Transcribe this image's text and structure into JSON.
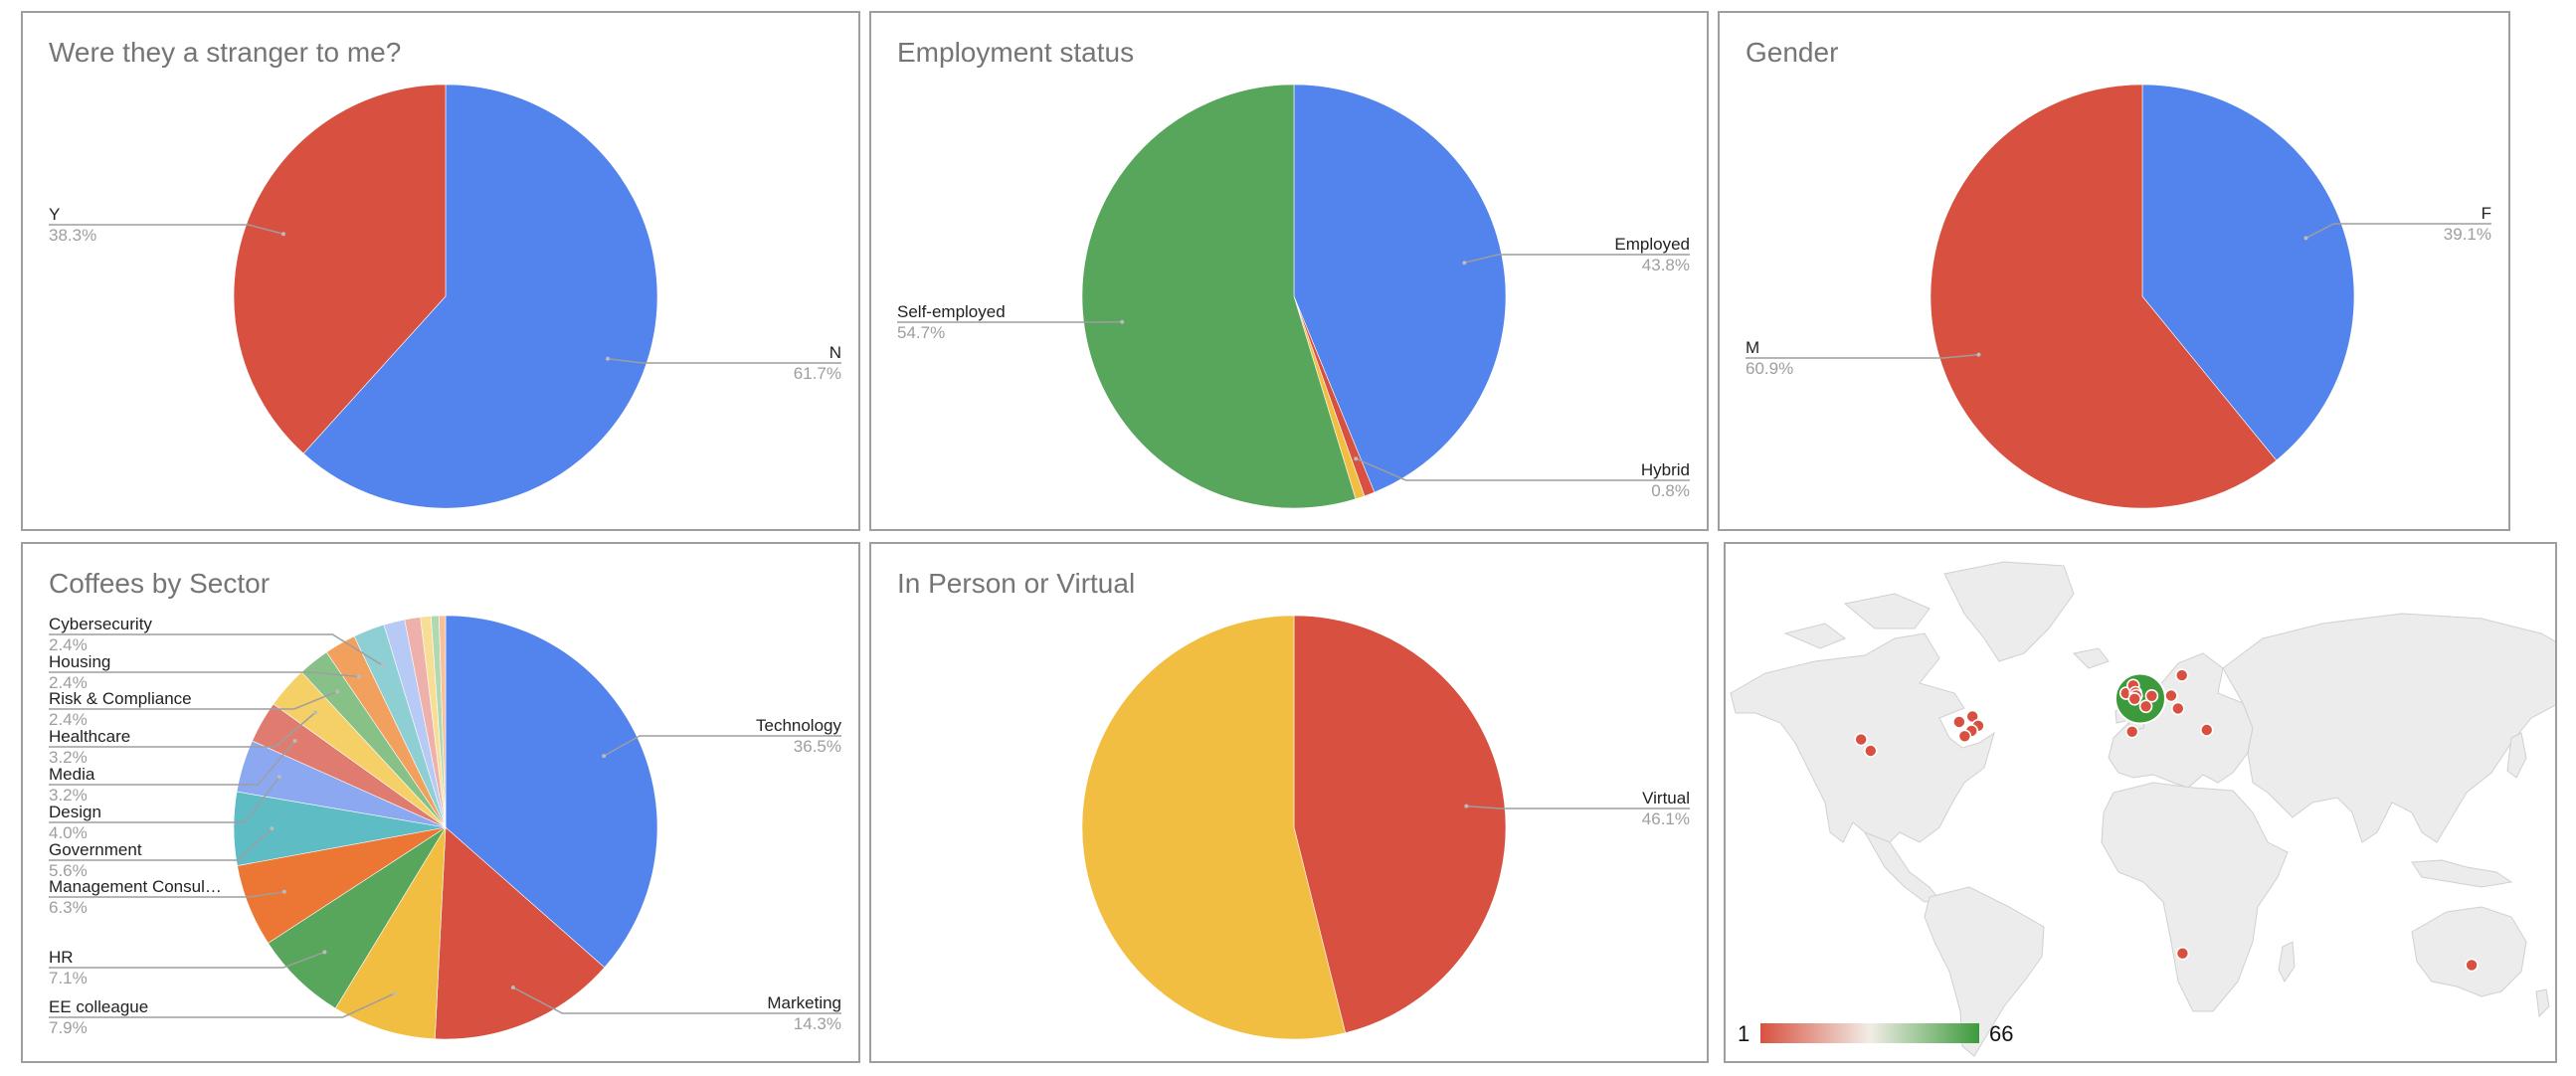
{
  "chart_data": [
    {
      "type": "pie",
      "title": "Were they a stranger to me?",
      "slices": [
        {
          "label": "N",
          "value": 61.7,
          "pct": "61.7%",
          "color": "#5383EC"
        },
        {
          "label": "Y",
          "value": 38.3,
          "pct": "38.3%",
          "color": "#D85140"
        }
      ]
    },
    {
      "type": "pie",
      "title": "Employment status",
      "slices": [
        {
          "label": "Employed",
          "value": 43.8,
          "pct": "43.8%",
          "color": "#5383EC"
        },
        {
          "label": "Hybrid",
          "value": 0.8,
          "pct": "0.8%",
          "color": "#D85140"
        },
        {
          "label": "",
          "value": 0.7,
          "pct": "",
          "color": "#F1BE42"
        },
        {
          "label": "Self-employed",
          "value": 54.7,
          "pct": "54.7%",
          "color": "#58A55C"
        }
      ]
    },
    {
      "type": "pie",
      "title": "Gender",
      "slices": [
        {
          "label": "F",
          "value": 39.1,
          "pct": "39.1%",
          "color": "#5383EC"
        },
        {
          "label": "M",
          "value": 60.9,
          "pct": "60.9%",
          "color": "#D85140"
        }
      ]
    },
    {
      "type": "pie",
      "title": "Coffees by Sector",
      "slices": [
        {
          "label": "Technology",
          "value": 36.5,
          "pct": "36.5%",
          "color": "#5383EC"
        },
        {
          "label": "Marketing",
          "value": 14.3,
          "pct": "14.3%",
          "color": "#D85140"
        },
        {
          "label": "EE colleague",
          "value": 7.9,
          "pct": "7.9%",
          "color": "#F1BE42"
        },
        {
          "label": "HR",
          "value": 7.1,
          "pct": "7.1%",
          "color": "#58A55C"
        },
        {
          "label": "Management Consul…",
          "value": 6.3,
          "pct": "6.3%",
          "color": "#EC7633"
        },
        {
          "label": "Government",
          "value": 5.6,
          "pct": "5.6%",
          "color": "#5EBCC4"
        },
        {
          "label": "Design",
          "value": 4.0,
          "pct": "4.0%",
          "color": "#8CA8F1"
        },
        {
          "label": "Media",
          "value": 3.2,
          "pct": "3.2%",
          "color": "#E07B70"
        },
        {
          "label": "Healthcare",
          "value": 3.2,
          "pct": "3.2%",
          "color": "#F5D067"
        },
        {
          "label": "Risk & Compliance",
          "value": 2.4,
          "pct": "2.4%",
          "color": "#87C187"
        },
        {
          "label": "Housing",
          "value": 2.4,
          "pct": "2.4%",
          "color": "#F2A05E"
        },
        {
          "label": "Cybersecurity",
          "value": 2.4,
          "pct": "2.4%",
          "color": "#8ECFD4"
        },
        {
          "label": "",
          "value": 1.6,
          "pct": "",
          "color": "#B7C9F5"
        },
        {
          "label": "",
          "value": 1.2,
          "pct": "",
          "color": "#EDB0AA"
        },
        {
          "label": "",
          "value": 0.8,
          "pct": "",
          "color": "#F8DD94"
        },
        {
          "label": "",
          "value": 0.6,
          "pct": "",
          "color": "#B1D8B1"
        },
        {
          "label": "",
          "value": 0.5,
          "pct": "",
          "color": "#F6C19A"
        }
      ]
    },
    {
      "type": "pie",
      "title": "In Person or Virtual",
      "slices": [
        {
          "label": "Virtual",
          "value": 46.1,
          "pct": "46.1%",
          "color": "#D85140"
        },
        {
          "label": "",
          "value": 53.9,
          "pct": "",
          "color": "#F1BE42"
        }
      ]
    }
  ],
  "geo_map": {
    "legend_min": "1",
    "legend_max": "66",
    "color_low": "#D85140",
    "color_high": "#3C9A3C",
    "markers": [
      {
        "place": "San Francisco",
        "lon": -122.4,
        "lat": 37.8,
        "value": 1
      },
      {
        "place": "Los Angeles",
        "lon": -118.2,
        "lat": 34.0,
        "value": 1
      },
      {
        "place": "Toronto",
        "lon": -79.4,
        "lat": 43.7,
        "value": 1
      },
      {
        "place": "Montreal",
        "lon": -73.6,
        "lat": 45.5,
        "value": 1
      },
      {
        "place": "Boston",
        "lon": -71.1,
        "lat": 42.4,
        "value": 1
      },
      {
        "place": "New York",
        "lon": -74.0,
        "lat": 40.7,
        "value": 1
      },
      {
        "place": "Washington",
        "lon": -77.0,
        "lat": 38.9,
        "value": 1
      },
      {
        "place": "London",
        "lon": -0.1,
        "lat": 51.5,
        "value": 66
      },
      {
        "place": "Dublin",
        "lon": -6.3,
        "lat": 53.3,
        "value": 2
      },
      {
        "place": "Edinburgh",
        "lon": -3.2,
        "lat": 55.9,
        "value": 2
      },
      {
        "place": "Manchester",
        "lon": -2.2,
        "lat": 53.5,
        "value": 2
      },
      {
        "place": "Birmingham",
        "lon": -1.9,
        "lat": 52.5,
        "value": 2
      },
      {
        "place": "Bristol",
        "lon": -2.6,
        "lat": 51.4,
        "value": 2
      },
      {
        "place": "Amsterdam",
        "lon": 4.9,
        "lat": 52.4,
        "value": 1
      },
      {
        "place": "Paris",
        "lon": 2.35,
        "lat": 48.9,
        "value": 1
      },
      {
        "place": "Madrid",
        "lon": -3.7,
        "lat": 40.4,
        "value": 1
      },
      {
        "place": "Berlin",
        "lon": 13.4,
        "lat": 52.5,
        "value": 1
      },
      {
        "place": "Stockholm",
        "lon": 18.1,
        "lat": 59.3,
        "value": 1
      },
      {
        "place": "Vienna",
        "lon": 16.4,
        "lat": 48.2,
        "value": 1
      },
      {
        "place": "Istanbul",
        "lon": 29.0,
        "lat": 41.0,
        "value": 1
      },
      {
        "place": "Cape Town",
        "lon": 18.4,
        "lat": -33.9,
        "value": 1
      },
      {
        "place": "Melbourne",
        "lon": 145.0,
        "lat": -37.8,
        "value": 1
      }
    ]
  }
}
